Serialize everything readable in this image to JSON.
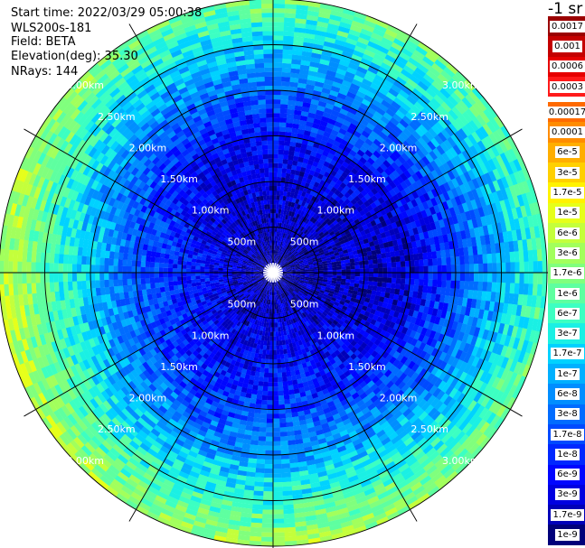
{
  "info": {
    "start_time": "Start time: 2022/03/29 05:00:38",
    "station": "WLS200s-181",
    "field": "Field: BETA",
    "elevation": "Elevation(deg): 35.30",
    "nrays": "NRays: 144"
  },
  "colorbar": {
    "units": "-1 sr",
    "upper_labels": [
      "0.0017",
      "0.001",
      "0.0006",
      "0.0003"
    ],
    "upper_colors": [
      "#9a0000",
      "#c40000",
      "#e60000",
      "#ff1a1a"
    ],
    "lower_labels": [
      "0.00017",
      "0.0001",
      "6e-5",
      "3e-5",
      "1.7e-5",
      "1e-5",
      "6e-6",
      "3e-6",
      "1.7e-6",
      "1e-6",
      "6e-7",
      "3e-7",
      "1.7e-7",
      "1e-7",
      "6e-8",
      "3e-8",
      "1.7e-8",
      "1e-8",
      "6e-9",
      "3e-9",
      "1.7e-9",
      "1e-9"
    ],
    "lower_colors": [
      "#ff6a00",
      "#ff8c00",
      "#ffae00",
      "#ffd000",
      "#fff200",
      "#e6ff1a",
      "#c4ff3b",
      "#a2ff5c",
      "#80ff7d",
      "#5effa0",
      "#3cffc2",
      "#1af0e4",
      "#00d2ff",
      "#00b0ff",
      "#008eff",
      "#006cff",
      "#004aff",
      "#0028ff",
      "#0006ff",
      "#0000e0",
      "#0000b8",
      "#00007a"
    ]
  },
  "chart_data": {
    "type": "heatmap",
    "projection": "polar PPI",
    "field": "BETA",
    "n_rays": 144,
    "range_ring_labels": [
      "500m",
      "1.00km",
      "1.50km",
      "2.00km",
      "2.50km",
      "3.00km"
    ],
    "range_rings_km": [
      0.5,
      1.0,
      1.5,
      2.0,
      2.5,
      3.0
    ],
    "max_range_km": 3.0,
    "spoke_angles_deg": [
      0,
      30,
      60,
      90,
      120,
      150,
      180,
      210,
      240,
      270,
      300,
      330
    ],
    "beta_scale_sr": {
      "min": 1e-09,
      "max": 0.0017,
      "log": true
    },
    "beta_profile_by_range": [
      {
        "range_km": 0.0,
        "beta": 1.5e-09
      },
      {
        "range_km": 0.5,
        "beta": 3e-09
      },
      {
        "range_km": 1.0,
        "beta": 5e-09
      },
      {
        "range_km": 1.5,
        "beta": 1e-08
      },
      {
        "range_km": 2.0,
        "beta": 5e-08
      },
      {
        "range_km": 2.5,
        "beta": 3e-07
      },
      {
        "range_km": 3.0,
        "beta": 2e-06
      }
    ]
  }
}
